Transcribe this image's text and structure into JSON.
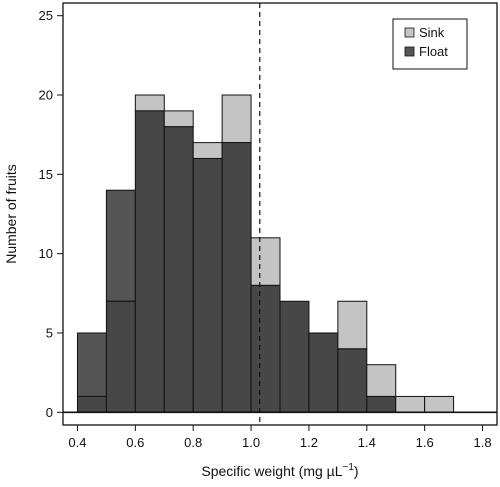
{
  "chart_data": {
    "type": "bar",
    "stacked": true,
    "bin_width": 0.1,
    "x": [
      0.45,
      0.55,
      0.65,
      0.75,
      0.85,
      0.95,
      1.05,
      1.15,
      1.25,
      1.35,
      1.45,
      1.55,
      1.65
    ],
    "series": [
      {
        "name": "Sink",
        "color": "#c4c4c4",
        "totals": [
          1,
          7,
          20,
          19,
          17,
          20,
          11,
          7,
          5,
          7,
          3,
          1,
          1
        ]
      },
      {
        "name": "Float",
        "color": "#555555",
        "totals": [
          5,
          14,
          19,
          18,
          16,
          17,
          8,
          7,
          5,
          4,
          1,
          0,
          0
        ]
      }
    ],
    "float_color_stacked": "#474747",
    "xlabel": "Specific weight (mg µL",
    "xlabel_superscript": "−1",
    "xlabel_close": ")",
    "ylabel": "Number of fruits",
    "xlim": [
      0.35,
      1.85
    ],
    "ylim": [
      -0.8,
      25.8
    ],
    "xticks": [
      "0.4",
      "0.6",
      "0.8",
      "1.0",
      "1.2",
      "1.4",
      "1.6",
      "1.8"
    ],
    "yticks": [
      "0",
      "5",
      "10",
      "15",
      "20",
      "25"
    ],
    "reference_line": {
      "x": 1.03,
      "style": "dashed"
    },
    "legend": {
      "position": "top-right",
      "entries": [
        "Sink",
        "Float"
      ]
    },
    "grid": false
  }
}
